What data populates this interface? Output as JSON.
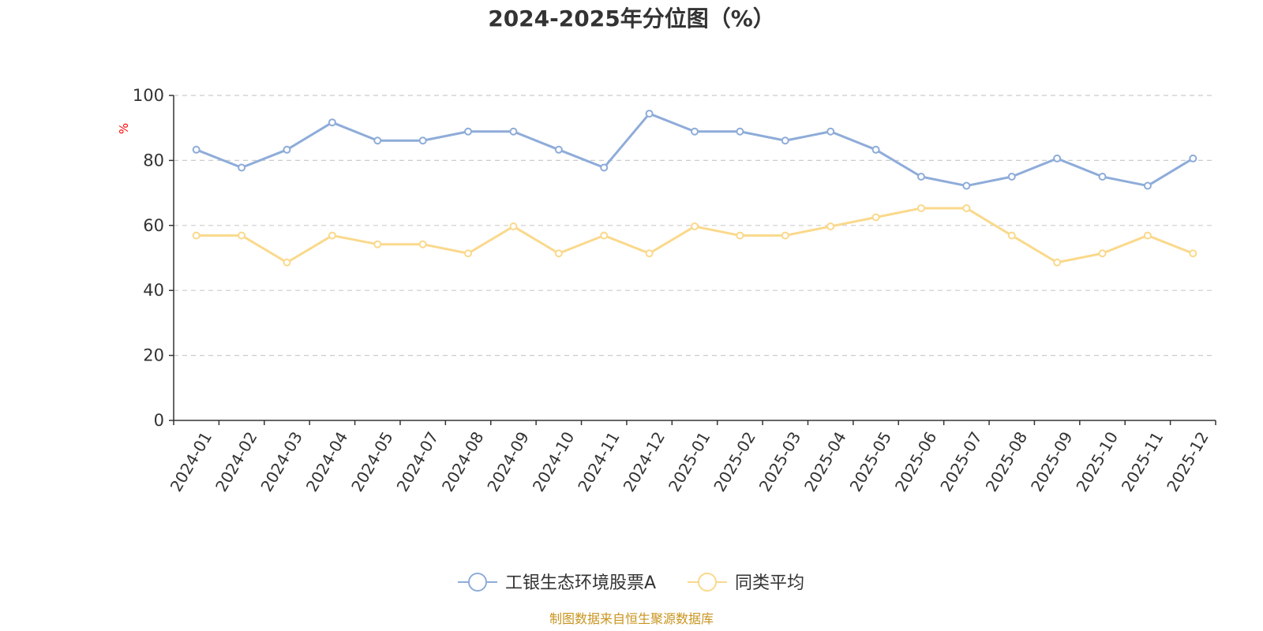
{
  "chart_data": {
    "type": "line",
    "title": "2024-2025年分位图（%）",
    "ylabel": "%",
    "xlabel": "",
    "ylim": [
      0,
      100
    ],
    "yticks": [
      0,
      20,
      40,
      60,
      80,
      100
    ],
    "grid": true,
    "legend_position": "bottom",
    "categories": [
      "2024-01",
      "2024-02",
      "2024-03",
      "2024-04",
      "2024-05",
      "2024-07",
      "2024-08",
      "2024-09",
      "2024-10",
      "2024-11",
      "2024-12",
      "2025-01",
      "2025-02",
      "2025-03",
      "2025-04",
      "2025-05",
      "2025-06",
      "2025-07",
      "2025-08",
      "2025-09",
      "2025-10",
      "2025-11",
      "2025-12"
    ],
    "series": [
      {
        "name": "工银生态环境股票A",
        "color": "#8eacd9",
        "values": [
          83.3,
          77.8,
          83.3,
          91.7,
          86.1,
          86.1,
          88.9,
          88.9,
          83.3,
          77.8,
          94.4,
          88.9,
          88.9,
          86.1,
          88.9,
          83.3,
          75.0,
          72.2,
          75.0,
          80.6,
          75.0,
          72.2,
          80.6
        ]
      },
      {
        "name": "同类平均",
        "color": "#fad98c",
        "values": [
          56.9,
          56.9,
          48.6,
          56.9,
          54.2,
          54.2,
          51.4,
          59.7,
          51.4,
          56.9,
          51.4,
          59.7,
          56.9,
          56.9,
          59.7,
          62.5,
          65.3,
          65.3,
          56.9,
          48.6,
          51.4,
          56.9,
          51.4
        ]
      }
    ]
  },
  "styles": {
    "axis_color": "#333333",
    "grid_color": "#cccccc",
    "unit_color": "#ff0000",
    "source_color": "#c8941f"
  },
  "source": "制图数据来自恒生聚源数据库"
}
